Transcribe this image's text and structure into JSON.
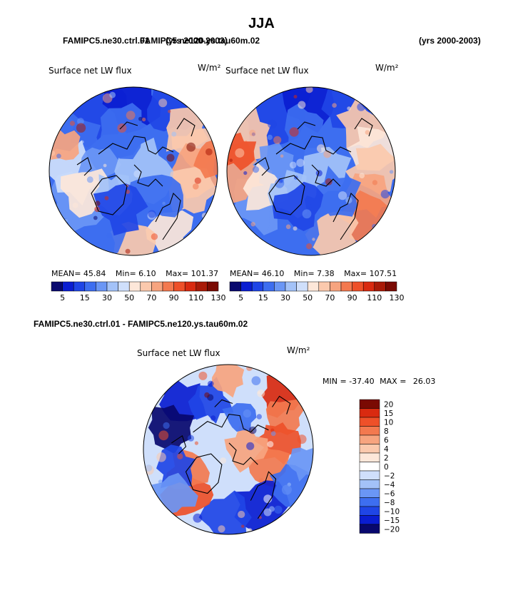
{
  "page": {
    "season": "JJA",
    "top_left_header_a": "FAMIPC5.ne30.ctrl.01",
    "top_left_header_b": "FAMIPC5.ne120.ys.tau60m.02",
    "top_left_years": "(yrs 2000-2003)",
    "top_right_years": "(yrs 2000-2003)",
    "diff_header": "FAMIPC5.ne30.ctrl.01 - FAMIPC5.ne120.ys.tau60m.02"
  },
  "colors": {
    "diverging": [
      "#08086e",
      "#0a1dd1",
      "#1f45e6",
      "#3d6ef0",
      "#6a96f5",
      "#a3c2f8",
      "#cfdffb",
      "#fde7d9",
      "#fbc9ad",
      "#f7a47f",
      "#f3794f",
      "#ee5029",
      "#d92a10",
      "#a91a08",
      "#7a0a03"
    ],
    "diff": [
      "#08086e",
      "#0a1dd1",
      "#1f45e6",
      "#3d6ef0",
      "#6a96f5",
      "#a3c2f8",
      "#cfdffb",
      "#ffffff",
      "#fde7d9",
      "#fbc9ad",
      "#f7a47f",
      "#f3794f",
      "#ee5029",
      "#d92a10",
      "#7a0a03"
    ]
  },
  "chart_data": [
    {
      "type": "heatmap",
      "panel": "ctrl",
      "title": "Surface net LW flux",
      "units": "W/m²",
      "projection": "north polar stereographic",
      "stats": {
        "mean_label": "MEAN=",
        "mean": "45.84",
        "min_label": "Min=",
        "min": "6.10",
        "max_label": "Max=",
        "max": "101.37"
      },
      "colorbar_levels": [
        5,
        10,
        15,
        20,
        30,
        40,
        50,
        60,
        70,
        80,
        90,
        100,
        110,
        120,
        130
      ],
      "colorbar_labels": [
        "5",
        "15",
        "30",
        "50",
        "70",
        "90",
        "110",
        "130"
      ]
    },
    {
      "type": "heatmap",
      "panel": "ne120",
      "title": "Surface net LW flux",
      "units": "W/m²",
      "projection": "north polar stereographic",
      "stats": {
        "mean_label": "MEAN=",
        "mean": "46.10",
        "min_label": "Min=",
        "min": "7.38",
        "max_label": "Max=",
        "max": "107.51"
      },
      "colorbar_levels": [
        5,
        10,
        15,
        20,
        30,
        40,
        50,
        60,
        70,
        80,
        90,
        100,
        110,
        120,
        130
      ],
      "colorbar_labels": [
        "5",
        "15",
        "30",
        "50",
        "70",
        "90",
        "110",
        "130"
      ]
    },
    {
      "type": "heatmap",
      "panel": "difference",
      "title": "Surface net LW flux",
      "units": "W/m²",
      "projection": "north polar stereographic",
      "stats": {
        "min_label": "MIN =",
        "min": "-37.40",
        "max_label": "MAX =",
        "max": "26.03"
      },
      "colorbar_levels": [
        20,
        15,
        10,
        8,
        6,
        4,
        2,
        0,
        -2,
        -4,
        -6,
        -8,
        -10,
        -15,
        -20
      ],
      "colorbar_labels": [
        "20",
        "15",
        "10",
        "8",
        "6",
        "4",
        "2",
        "0",
        "−2",
        "−4",
        "−6",
        "−8",
        "−10",
        "−15",
        "−20"
      ]
    }
  ]
}
